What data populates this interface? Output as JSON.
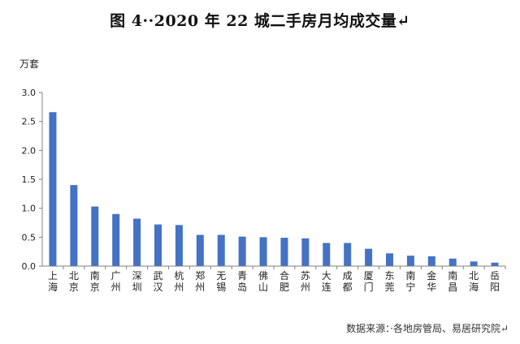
{
  "title": "图 4··2020 年 22 城二手房月均成交量↵",
  "source": "数据来源：·各地房管局、易居研究院↵",
  "colors": {
    "bar": "#4472C4",
    "axis": "#808080",
    "grid": "#d9d9d9"
  },
  "chart_data": {
    "type": "bar",
    "ylabel": "万套",
    "ylim": [
      0,
      3.0
    ],
    "yticks": [
      "0.0",
      "0.5",
      "1.0",
      "1.5",
      "2.0",
      "2.5",
      "3.0"
    ],
    "grid": false,
    "categories": [
      "上海",
      "北京",
      "南京",
      "广州",
      "深圳",
      "武汉",
      "杭州",
      "郑州",
      "无锡",
      "青岛",
      "佛山",
      "合肥",
      "苏州",
      "大连",
      "成都",
      "厦门",
      "东莞",
      "南宁",
      "金华",
      "南昌",
      "北海",
      "岳阳"
    ],
    "values": [
      2.66,
      1.4,
      1.03,
      0.9,
      0.82,
      0.72,
      0.71,
      0.54,
      0.54,
      0.51,
      0.5,
      0.49,
      0.48,
      0.4,
      0.4,
      0.3,
      0.22,
      0.18,
      0.17,
      0.13,
      0.08,
      0.06
    ]
  }
}
